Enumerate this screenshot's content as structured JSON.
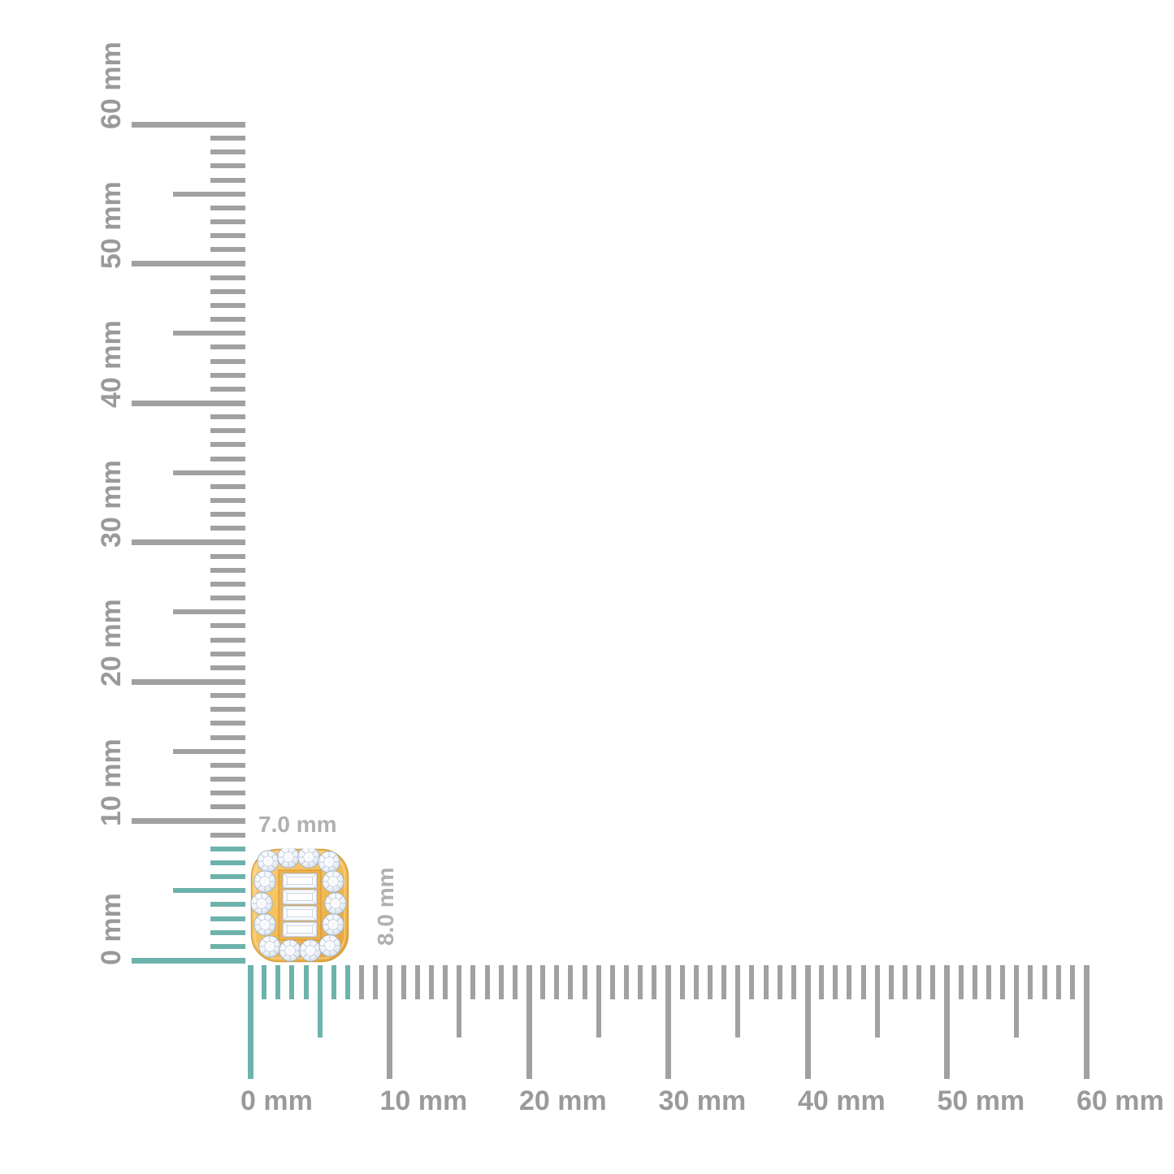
{
  "rulers": {
    "unit": "mm",
    "max_mm": 60,
    "major_every_mm": 10,
    "medium_every_mm": 5,
    "minor_every_mm": 1,
    "tick_labels": [
      "0 mm",
      "10 mm",
      "20 mm",
      "30 mm",
      "40 mm",
      "50 mm",
      "60 mm"
    ],
    "vertical": {
      "orientation": "left",
      "highlight_mm_from": 0,
      "highlight_mm_to": 8
    },
    "horizontal": {
      "orientation": "bottom",
      "highlight_mm_from": 0,
      "highlight_mm_to": 7
    }
  },
  "dimension_annotations": {
    "width": "7.0 mm",
    "height": "8.0 mm"
  },
  "item": {
    "description": "cushion-shaped yellow gold stud earring with round diamond halo and four baguette diamonds"
  },
  "colors": {
    "background": "#ffffff",
    "tick_gray": "#a1a1a1",
    "tick_highlight": "#6eb2ac",
    "ruler_label_gray": "#9a9a9a",
    "dimension_label_gray": "#b0b0b0",
    "gold_light": "#f9d37e",
    "gold_mid": "#f4c05b",
    "gold_dark": "#e3a136",
    "diamond_facet": "#a9b8cf"
  }
}
